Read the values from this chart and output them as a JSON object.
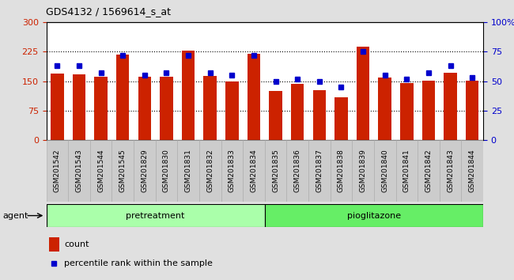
{
  "title": "GDS4132 / 1569614_s_at",
  "categories": [
    "GSM201542",
    "GSM201543",
    "GSM201544",
    "GSM201545",
    "GSM201829",
    "GSM201830",
    "GSM201831",
    "GSM201832",
    "GSM201833",
    "GSM201834",
    "GSM201835",
    "GSM201836",
    "GSM201837",
    "GSM201838",
    "GSM201839",
    "GSM201840",
    "GSM201841",
    "GSM201842",
    "GSM201843",
    "GSM201844"
  ],
  "bar_values": [
    170,
    168,
    162,
    218,
    162,
    162,
    227,
    163,
    150,
    220,
    125,
    144,
    128,
    108,
    238,
    160,
    146,
    152,
    172,
    152
  ],
  "percentile_values": [
    63,
    63,
    57,
    72,
    55,
    57,
    72,
    57,
    55,
    72,
    50,
    52,
    50,
    45,
    75,
    55,
    52,
    57,
    63,
    53
  ],
  "bar_color": "#cc2200",
  "dot_color": "#0000cc",
  "ylim_left": [
    0,
    300
  ],
  "ylim_right": [
    0,
    100
  ],
  "yticks_left": [
    0,
    75,
    150,
    225,
    300
  ],
  "yticks_right": [
    0,
    25,
    50,
    75,
    100
  ],
  "ytick_labels_right": [
    "0",
    "25",
    "50",
    "75",
    "100%"
  ],
  "grid_lines": [
    75,
    150,
    225
  ],
  "group_labels": [
    "pretreatment",
    "pioglitazone"
  ],
  "pretreatment_count": 10,
  "pioglitazone_count": 10,
  "group_color_pre": "#aaffaa",
  "group_color_pio": "#66ee66",
  "agent_label": "agent",
  "legend_count_label": "count",
  "legend_pct_label": "percentile rank within the sample",
  "fig_bg": "#e0e0e0",
  "plot_bg": "#ffffff",
  "bar_width": 0.6
}
